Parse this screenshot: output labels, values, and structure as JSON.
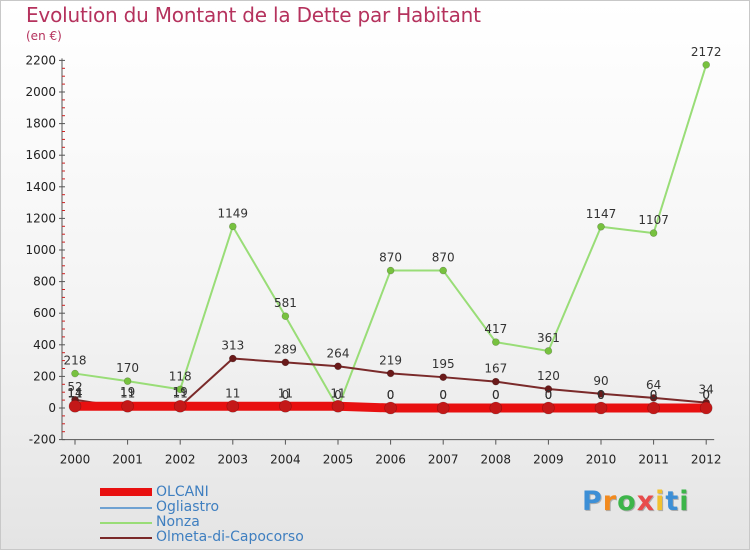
{
  "chart_data": {
    "type": "line",
    "title": "Evolution du Montant de la Dette par Habitant",
    "subtitle": "(en €)",
    "xlabel": "",
    "ylabel": "",
    "ylim": [
      -200,
      2200
    ],
    "yticks": [
      -200,
      0,
      200,
      400,
      600,
      800,
      1000,
      1200,
      1400,
      1600,
      1800,
      2000,
      2200
    ],
    "x": [
      "2000",
      "2001",
      "2002",
      "2003",
      "2004",
      "2005",
      "2006",
      "2007",
      "2008",
      "2009",
      "2010",
      "2011",
      "2012"
    ],
    "grid": false,
    "legend_position": "bottom-left",
    "series": [
      {
        "name": "OLCANI",
        "color": "#e81010",
        "marker_color": "#c41818",
        "values": [
          11,
          11,
          11,
          11,
          11,
          11,
          0,
          0,
          0,
          0,
          0,
          0,
          0
        ],
        "labels": [
          "11",
          "11",
          "11",
          "11",
          "11",
          "11",
          "0",
          "0",
          "0",
          "0",
          "0",
          "0",
          "0"
        ]
      },
      {
        "name": "Ogliastro",
        "color": "#6fa2d2",
        "marker_color": "#4d88c9",
        "values": [
          14,
          19,
          19,
          11,
          0,
          0,
          0,
          0,
          0,
          0,
          0,
          0,
          0
        ],
        "labels": [
          "14",
          "19",
          "19",
          "",
          "0",
          "0",
          "0",
          "0",
          "0",
          "0",
          "0",
          "0",
          "0"
        ]
      },
      {
        "name": "Nonza",
        "color": "#99dd77",
        "marker_color": "#77c13f",
        "values": [
          218,
          170,
          118,
          1149,
          581,
          0,
          870,
          870,
          417,
          361,
          1147,
          1107,
          2172
        ],
        "labels": [
          "218",
          "170",
          "118",
          "1149",
          "581",
          "",
          "870",
          "870",
          "417",
          "361",
          "1147",
          "1107",
          "2172"
        ]
      },
      {
        "name": "Olmeta-di-Capocorso",
        "color": "#7a2a2a",
        "marker_color": "#6a1a1a",
        "values": [
          52,
          0,
          11,
          313,
          289,
          264,
          219,
          195,
          167,
          120,
          90,
          64,
          34
        ],
        "labels": [
          "52",
          "",
          "",
          "313",
          "289",
          "264",
          "219",
          "195",
          "167",
          "120",
          "90",
          "64",
          "34"
        ]
      }
    ]
  },
  "legend": {
    "items": [
      "OLCANI",
      "Ogliastro",
      "Nonza",
      "Olmeta-di-Capocorso"
    ]
  },
  "logo": {
    "letters": [
      "P",
      "r",
      "o",
      "x",
      "i",
      "t",
      "i"
    ],
    "colors": [
      "#3d8fd6",
      "#f28a1e",
      "#3db54a",
      "#e84c4c",
      "#f2c12e",
      "#3d8fd6",
      "#3db54a"
    ]
  }
}
